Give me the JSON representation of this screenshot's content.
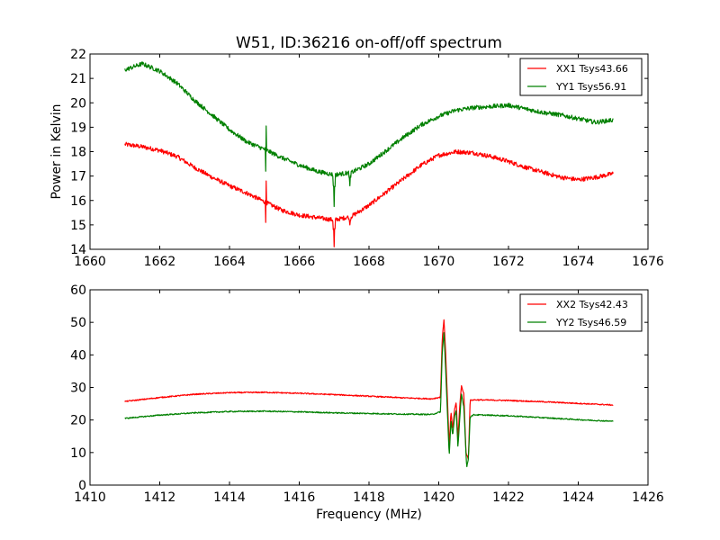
{
  "chart_data": [
    {
      "type": "line",
      "title": "W51, ID:36216 on-off/off spectrum",
      "xlabel": "",
      "ylabel": "Power in Kelvin",
      "xlim": [
        1660,
        1676
      ],
      "ylim": [
        14,
        22
      ],
      "xticks": [
        "1660",
        "1662",
        "1664",
        "1666",
        "1668",
        "1670",
        "1672",
        "1674",
        "1676"
      ],
      "yticks": [
        "14",
        "15",
        "16",
        "17",
        "18",
        "19",
        "20",
        "21",
        "22"
      ],
      "grid": false,
      "legend_position": "top-right",
      "series": [
        {
          "name": "XX1 Tsys43.66",
          "color": "#ff0000",
          "x": [
            1661.0,
            1661.5,
            1662.0,
            1662.5,
            1663.0,
            1663.5,
            1664.0,
            1664.5,
            1665.0,
            1665.5,
            1666.0,
            1666.5,
            1667.0,
            1667.5,
            1668.0,
            1668.5,
            1669.0,
            1669.5,
            1670.0,
            1670.5,
            1671.0,
            1671.5,
            1672.0,
            1672.5,
            1673.0,
            1673.5,
            1674.0,
            1674.5,
            1675.0
          ],
          "values": [
            18.3,
            18.2,
            18.05,
            17.8,
            17.35,
            16.95,
            16.6,
            16.3,
            15.95,
            15.6,
            15.4,
            15.3,
            15.2,
            15.35,
            15.8,
            16.35,
            16.9,
            17.45,
            17.85,
            18.0,
            17.95,
            17.8,
            17.6,
            17.35,
            17.15,
            16.95,
            16.85,
            16.95,
            17.1
          ],
          "features": [
            {
              "x": 1665.05,
              "peak": 16.8,
              "dip": 15.1
            },
            {
              "x": 1667.0,
              "dip": 14.1
            },
            {
              "x": 1667.45,
              "dip": 15.0
            }
          ]
        },
        {
          "name": "YY1 Tsys56.91",
          "color": "#008000",
          "x": [
            1661.0,
            1661.5,
            1662.0,
            1662.5,
            1663.0,
            1663.5,
            1664.0,
            1664.5,
            1665.0,
            1665.5,
            1666.0,
            1666.5,
            1667.0,
            1667.5,
            1668.0,
            1668.5,
            1669.0,
            1669.5,
            1670.0,
            1670.5,
            1671.0,
            1671.5,
            1672.0,
            1672.5,
            1673.0,
            1673.5,
            1674.0,
            1674.5,
            1675.0
          ],
          "values": [
            21.35,
            21.6,
            21.3,
            20.8,
            20.1,
            19.5,
            18.9,
            18.4,
            18.1,
            17.75,
            17.45,
            17.2,
            17.05,
            17.15,
            17.5,
            18.05,
            18.6,
            19.1,
            19.45,
            19.7,
            19.8,
            19.85,
            19.9,
            19.75,
            19.6,
            19.5,
            19.35,
            19.2,
            19.3
          ],
          "features": [
            {
              "x": 1665.05,
              "peak": 19.05,
              "dip": 17.2
            },
            {
              "x": 1667.0,
              "dip": 15.75
            },
            {
              "x": 1667.45,
              "dip": 16.6
            }
          ]
        }
      ]
    },
    {
      "type": "line",
      "title": "",
      "xlabel": "Frequency (MHz)",
      "ylabel": "",
      "xlim": [
        1410,
        1426
      ],
      "ylim": [
        0,
        60
      ],
      "xticks": [
        "1410",
        "1412",
        "1414",
        "1416",
        "1418",
        "1420",
        "1422",
        "1424",
        "1426"
      ],
      "yticks": [
        "0",
        "10",
        "20",
        "30",
        "40",
        "50",
        "60"
      ],
      "grid": false,
      "legend_position": "top-right",
      "series": [
        {
          "name": "XX2 Tsys42.43",
          "color": "#ff0000",
          "x": [
            1411.0,
            1412.0,
            1413.0,
            1414.0,
            1415.0,
            1416.0,
            1417.0,
            1418.0,
            1419.0,
            1419.8,
            1420.05,
            1420.1,
            1420.15,
            1420.2,
            1420.3,
            1420.35,
            1420.4,
            1420.45,
            1420.5,
            1420.55,
            1420.6,
            1420.65,
            1420.72,
            1420.78,
            1420.85,
            1420.9,
            1421.0,
            1422.0,
            1423.0,
            1424.0,
            1425.0
          ],
          "values": [
            25.7,
            26.9,
            27.9,
            28.4,
            28.5,
            28.2,
            27.8,
            27.3,
            26.8,
            26.5,
            27.0,
            45.0,
            51.0,
            40.0,
            12.0,
            22.5,
            17.0,
            23.0,
            25.5,
            14.0,
            24.0,
            30.5,
            28.0,
            10.0,
            8.0,
            26.0,
            26.2,
            26.0,
            25.6,
            25.1,
            24.6
          ]
        },
        {
          "name": "YY2 Tsys46.59",
          "color": "#008000",
          "x": [
            1411.0,
            1412.0,
            1413.0,
            1414.0,
            1415.0,
            1416.0,
            1417.0,
            1418.0,
            1419.0,
            1419.8,
            1420.05,
            1420.1,
            1420.15,
            1420.2,
            1420.3,
            1420.35,
            1420.4,
            1420.45,
            1420.5,
            1420.55,
            1420.6,
            1420.65,
            1420.72,
            1420.8,
            1420.85,
            1420.9,
            1421.0,
            1422.0,
            1423.0,
            1424.0,
            1425.0
          ],
          "values": [
            20.5,
            21.5,
            22.2,
            22.6,
            22.7,
            22.5,
            22.2,
            22.0,
            21.8,
            21.7,
            22.5,
            41.0,
            47.0,
            35.0,
            9.0,
            20.0,
            15.0,
            21.0,
            23.0,
            11.5,
            20.0,
            28.0,
            24.0,
            5.5,
            8.0,
            21.0,
            21.6,
            21.3,
            20.7,
            20.1,
            19.6
          ]
        }
      ]
    }
  ]
}
